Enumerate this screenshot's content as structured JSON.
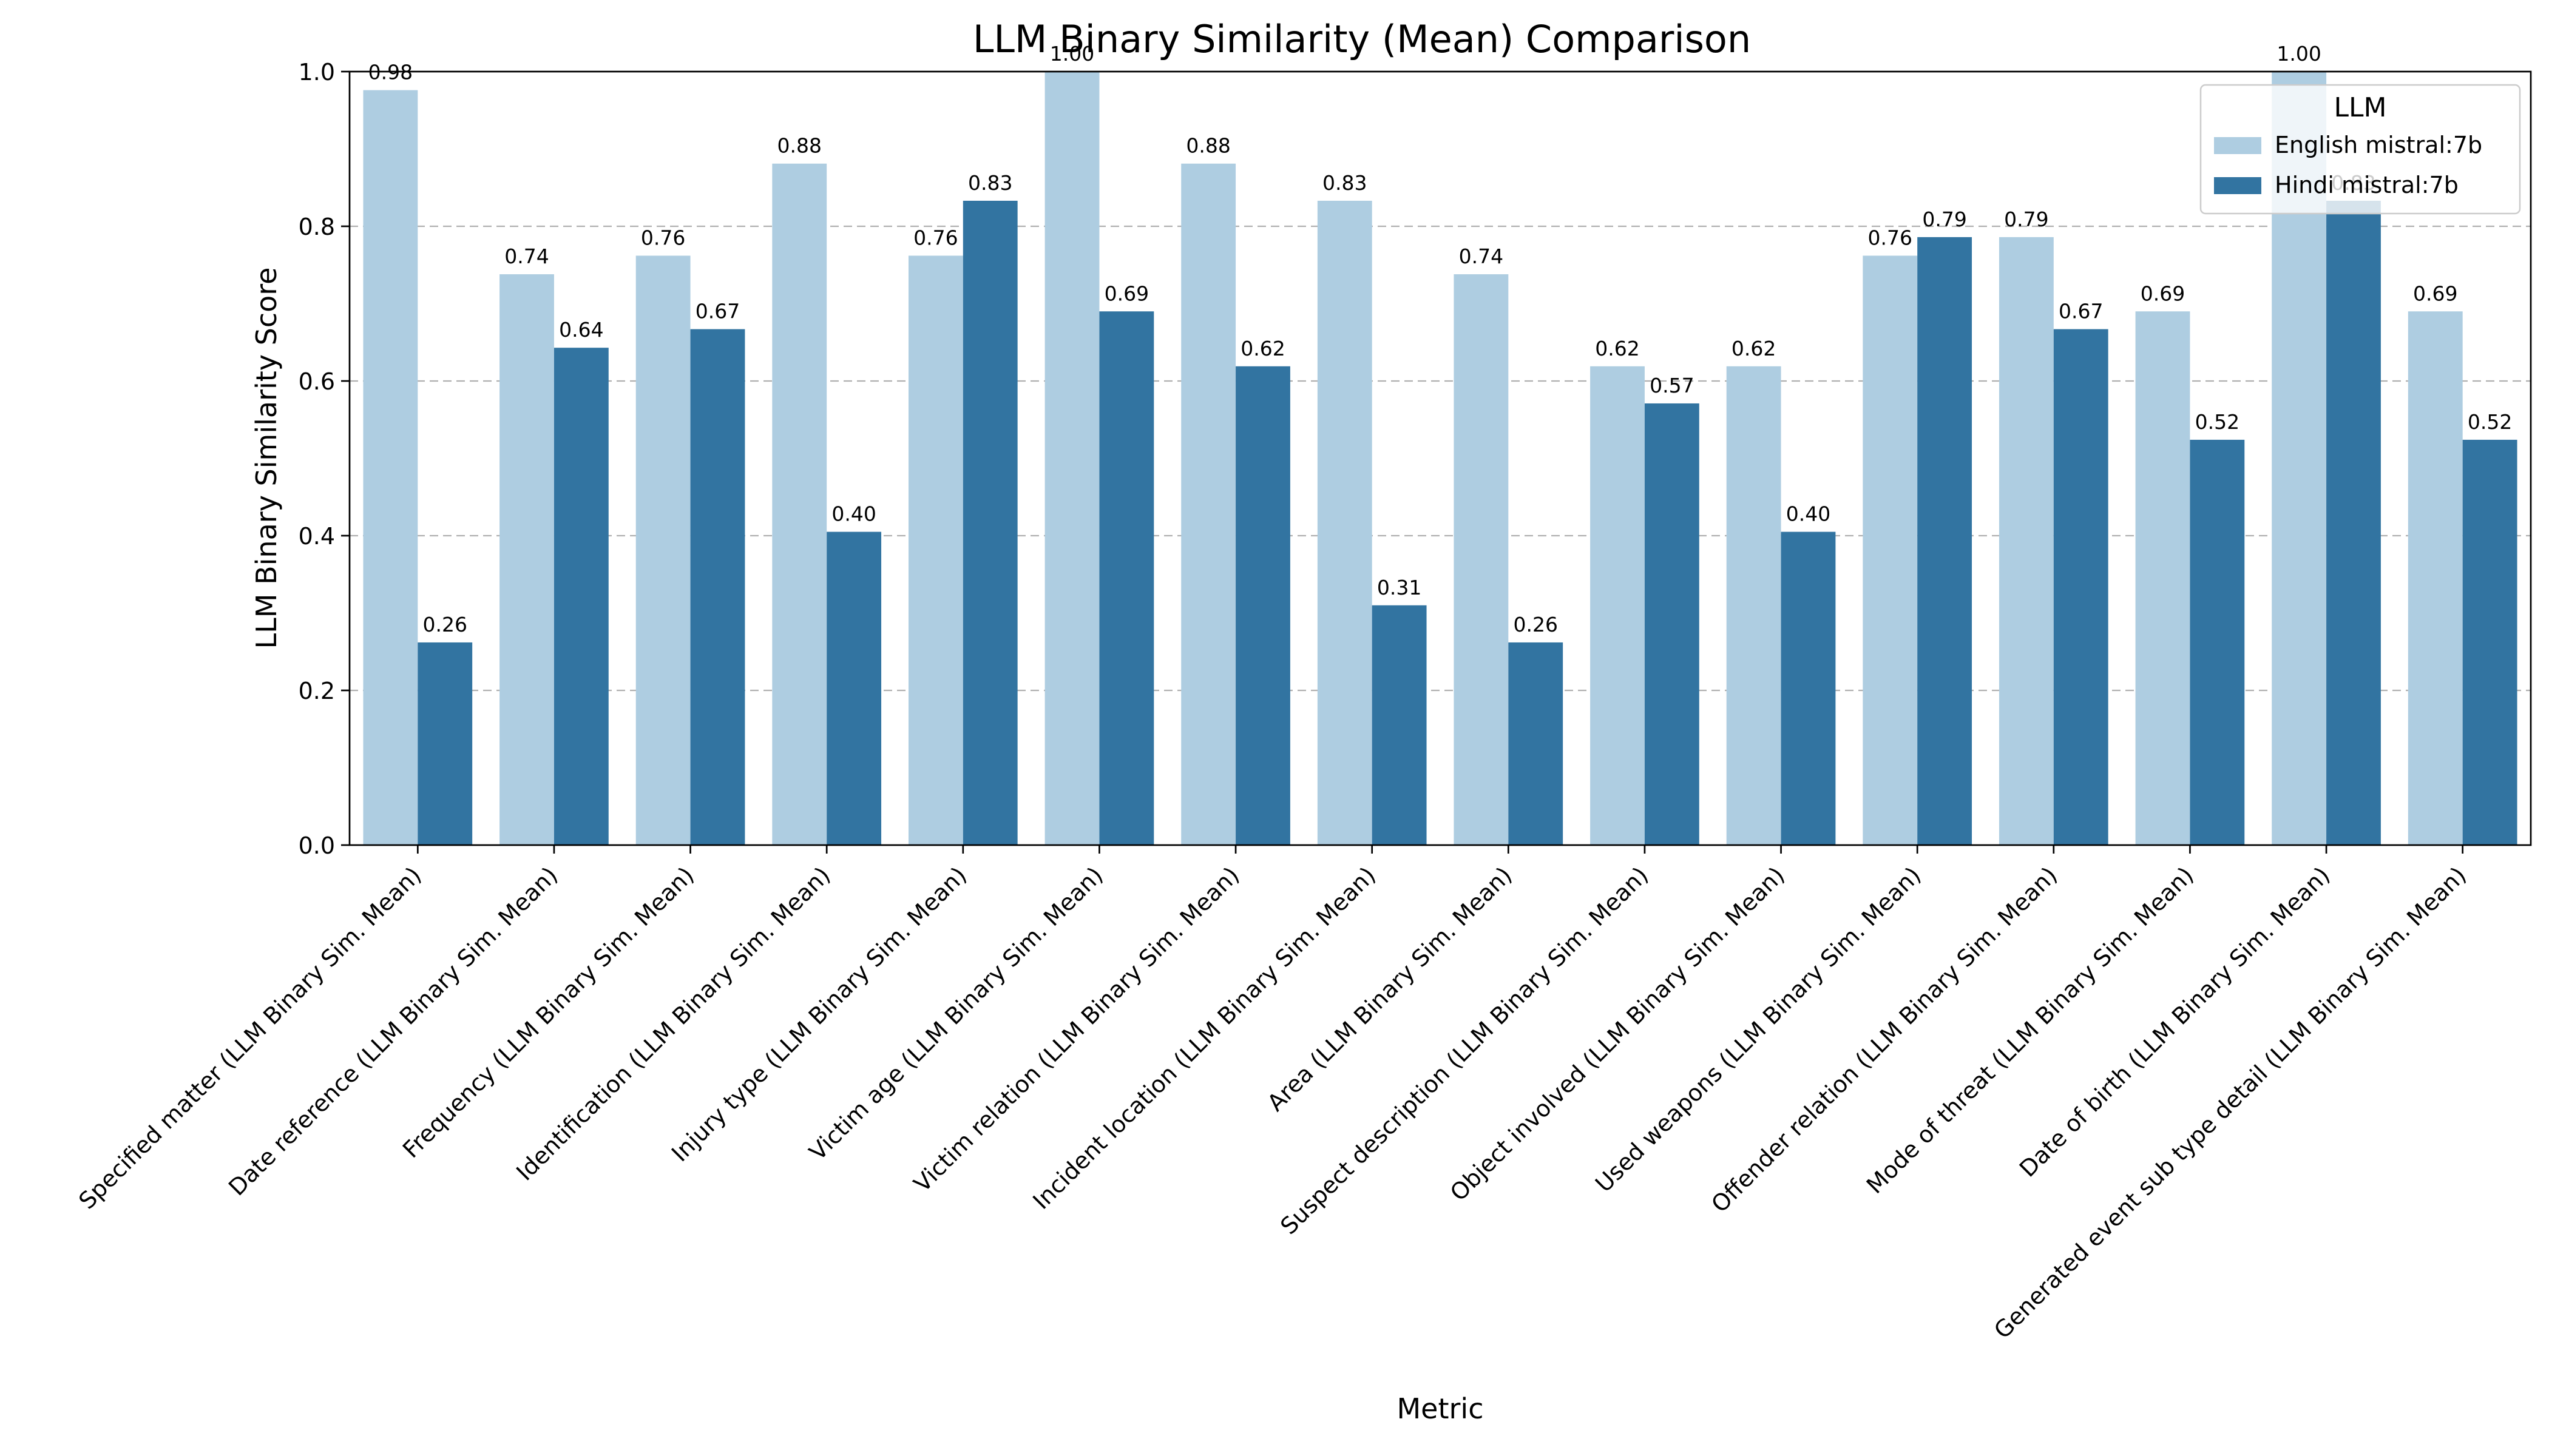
{
  "chart_data": {
    "type": "bar",
    "title": "LLM Binary Similarity (Mean) Comparison",
    "xlabel": "Metric",
    "ylabel": "LLM Binary Similarity Score",
    "ylim": [
      0,
      1.0
    ],
    "yticks": [
      "0.0",
      "0.2",
      "0.4",
      "0.6",
      "0.8",
      "1.0"
    ],
    "grid": true,
    "legend_title": "LLM",
    "legend_position": "top-right",
    "categories": [
      "Specified matter (LLM Binary Sim. Mean)",
      "Date reference (LLM Binary Sim. Mean)",
      "Frequency (LLM Binary Sim. Mean)",
      "Identification (LLM Binary Sim. Mean)",
      "Injury type (LLM Binary Sim. Mean)",
      "Victim age (LLM Binary Sim. Mean)",
      "Victim relation (LLM Binary Sim. Mean)",
      "Incident location (LLM Binary Sim. Mean)",
      "Area (LLM Binary Sim. Mean)",
      "Suspect description (LLM Binary Sim. Mean)",
      "Object involved (LLM Binary Sim. Mean)",
      "Used weapons (LLM Binary Sim. Mean)",
      "Offender relation (LLM Binary Sim. Mean)",
      "Mode of threat (LLM Binary Sim. Mean)",
      "Date of birth (LLM Binary Sim. Mean)",
      "Generated event sub type detail (LLM Binary Sim. Mean)"
    ],
    "series": [
      {
        "name": "English mistral:7b",
        "color": "#aecde1",
        "values": [
          0.976,
          0.738,
          0.762,
          0.881,
          0.762,
          1.0,
          0.881,
          0.833,
          0.738,
          0.619,
          0.619,
          0.762,
          0.786,
          0.69,
          1.0,
          0.69
        ],
        "labels": [
          "0.98",
          "0.74",
          "0.76",
          "0.88",
          "0.76",
          "1.00",
          "0.88",
          "0.83",
          "0.74",
          "0.62",
          "0.62",
          "0.76",
          "0.79",
          "0.69",
          "1.00",
          "0.69"
        ]
      },
      {
        "name": "Hindi mistral:7b",
        "color": "#3274a1",
        "values": [
          0.262,
          0.643,
          0.667,
          0.405,
          0.833,
          0.69,
          0.619,
          0.31,
          0.262,
          0.571,
          0.405,
          0.786,
          0.667,
          0.524,
          0.833,
          0.524
        ],
        "labels": [
          "0.26",
          "0.64",
          "0.67",
          "0.40",
          "0.83",
          "0.69",
          "0.62",
          "0.31",
          "0.26",
          "0.57",
          "0.40",
          "0.79",
          "0.67",
          "0.52",
          "0.83",
          "0.52"
        ]
      }
    ]
  }
}
